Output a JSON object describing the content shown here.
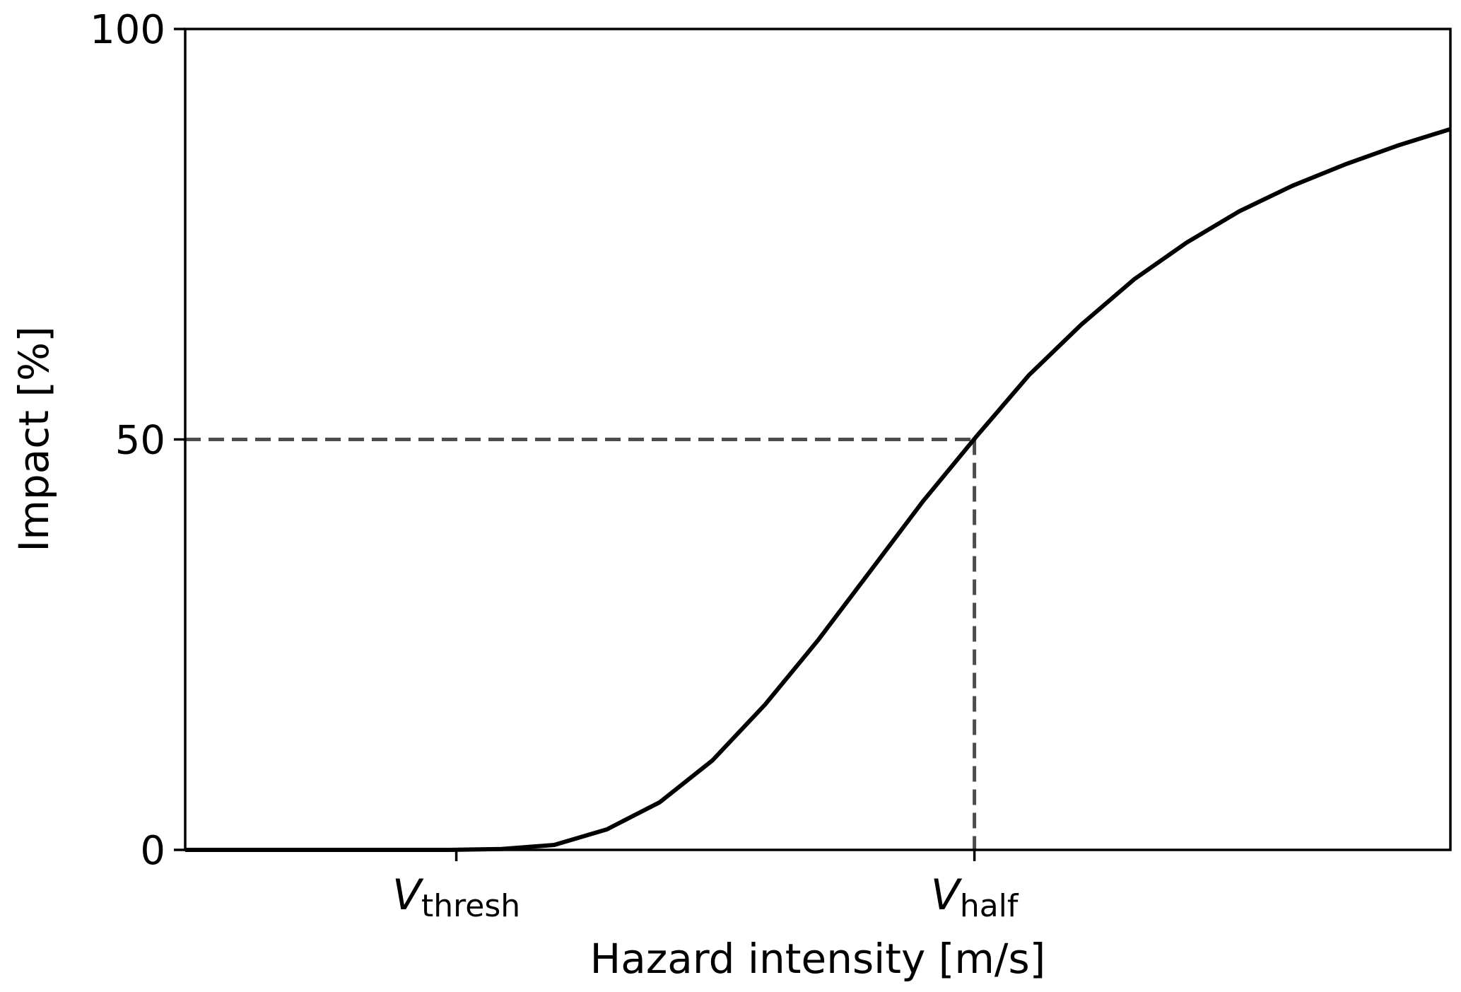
{
  "chart_data": {
    "type": "line",
    "xlabel": "Hazard intensity [m/s]",
    "ylabel": "Impact [%]",
    "ylim": [
      0,
      100
    ],
    "xlim": [
      0,
      1
    ],
    "y_ticks": [
      {
        "value": 0,
        "label": "0"
      },
      {
        "value": 50,
        "label": "50"
      },
      {
        "value": 100,
        "label": "100"
      }
    ],
    "x_ticks": [
      {
        "value": 0.2143,
        "symbol": "V",
        "subscript": "thresh"
      },
      {
        "value": 0.6238,
        "symbol": "V",
        "subscript": "half"
      }
    ],
    "grid": false,
    "series": [
      {
        "color": "#000000",
        "points": [
          [
            0.0,
            0.0
          ],
          [
            0.0417,
            0.0
          ],
          [
            0.0833,
            0.0
          ],
          [
            0.125,
            0.0
          ],
          [
            0.1667,
            0.0
          ],
          [
            0.2083,
            0.0
          ],
          [
            0.25,
            0.1
          ],
          [
            0.2917,
            0.6
          ],
          [
            0.3333,
            2.5
          ],
          [
            0.375,
            5.8
          ],
          [
            0.4167,
            10.9
          ],
          [
            0.4583,
            17.7
          ],
          [
            0.5,
            25.5
          ],
          [
            0.5417,
            34.0
          ],
          [
            0.5833,
            42.5
          ],
          [
            0.625,
            50.3
          ],
          [
            0.6667,
            57.8
          ],
          [
            0.7083,
            64.0
          ],
          [
            0.75,
            69.5
          ],
          [
            0.7917,
            74.0
          ],
          [
            0.8333,
            77.8
          ],
          [
            0.875,
            80.9
          ],
          [
            0.9167,
            83.5
          ],
          [
            0.9583,
            85.8
          ],
          [
            1.0,
            87.8
          ]
        ]
      }
    ],
    "reference_lines": [
      {
        "style": "dashed",
        "color": "#4d4d4d",
        "from": [
          0,
          50
        ],
        "to": [
          0.6238,
          50
        ]
      },
      {
        "style": "dashed",
        "color": "#4d4d4d",
        "from": [
          0.6238,
          50
        ],
        "to": [
          0.6238,
          0
        ]
      }
    ]
  }
}
